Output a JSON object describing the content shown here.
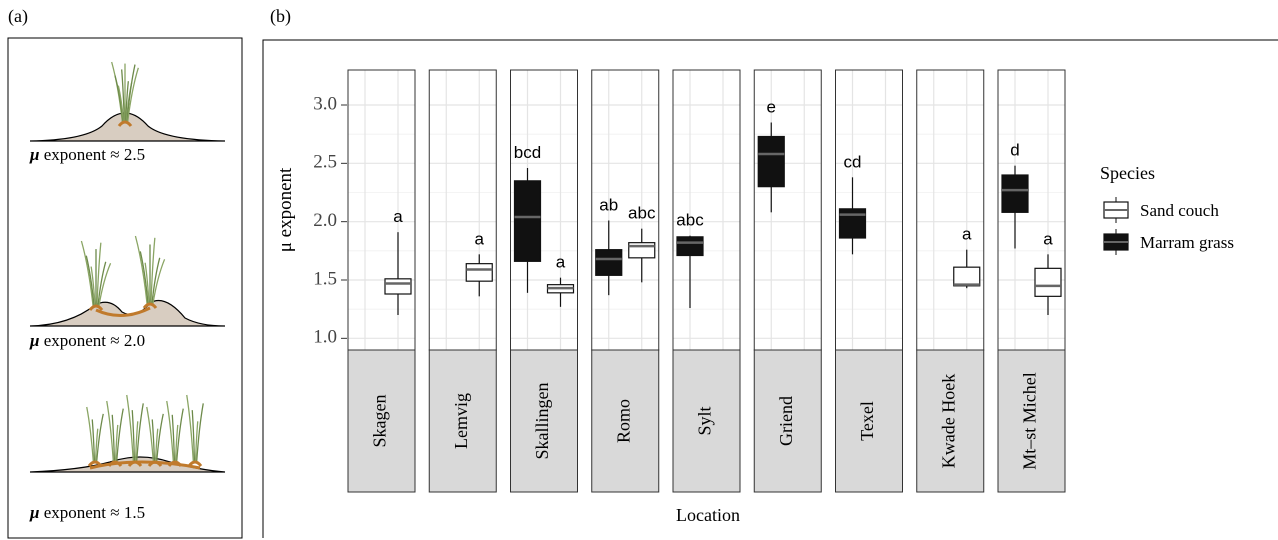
{
  "panel_a": {
    "label": "(a)",
    "items": [
      {
        "symbol": "μ",
        "text": "exponent ≈ 2.5"
      },
      {
        "symbol": "μ",
        "text": "exponent ≈ 2.0"
      },
      {
        "symbol": "μ",
        "text": "exponent ≈ 1.5"
      }
    ]
  },
  "chart_data": {
    "type": "boxplot",
    "panel_label": "(b)",
    "y_label": "μ exponent",
    "x_label": "Location",
    "categories": [
      "Skagen",
      "Lemvig",
      "Skallingen",
      "Romo",
      "Sylt",
      "Griend",
      "Texel",
      "Kwade Hoek",
      "Mt–st Michel"
    ],
    "ylim": [
      0.9,
      3.3
    ],
    "yticks": [
      {
        "value": 1,
        "label": "1.0"
      },
      1.5,
      {
        "value": 2,
        "label": "2.0"
      },
      2.5,
      {
        "value": 3,
        "label": "3.0"
      }
    ],
    "grid": true,
    "legend_title": "Species",
    "legend_position": "right",
    "series": [
      {
        "name": "Sand couch",
        "color": "#ffffff",
        "boxes": [
          {
            "low": 1.2,
            "q1": 1.38,
            "median": 1.47,
            "q3": 1.51,
            "high": 1.91,
            "label": "a"
          },
          {
            "low": 1.36,
            "q1": 1.49,
            "median": 1.59,
            "q3": 1.64,
            "high": 1.72,
            "label": "a"
          },
          {
            "low": 1.27,
            "q1": 1.39,
            "median": 1.43,
            "q3": 1.46,
            "high": 1.52,
            "label": "a"
          },
          {
            "low": 1.48,
            "q1": 1.69,
            "median": 1.79,
            "q3": 1.82,
            "high": 1.94,
            "label": "abc"
          },
          null,
          null,
          null,
          {
            "low": 1.43,
            "q1": 1.45,
            "median": 1.46,
            "q3": 1.61,
            "high": 1.76,
            "label": "a"
          },
          {
            "low": 1.2,
            "q1": 1.36,
            "median": 1.45,
            "q3": 1.6,
            "high": 1.72,
            "label": "a"
          }
        ]
      },
      {
        "name": "Marram grass",
        "color": "#111111",
        "boxes": [
          null,
          null,
          {
            "low": 1.39,
            "q1": 1.66,
            "median": 2.04,
            "q3": 2.35,
            "high": 2.46,
            "label": "bcd"
          },
          {
            "low": 1.37,
            "q1": 1.54,
            "median": 1.68,
            "q3": 1.76,
            "high": 2.01,
            "label": "ab"
          },
          {
            "low": 1.26,
            "q1": 1.71,
            "median": 1.82,
            "q3": 1.87,
            "high": 1.88,
            "label": "abc"
          },
          {
            "low": 2.08,
            "q1": 2.3,
            "median": 2.58,
            "q3": 2.73,
            "high": 2.85,
            "label": "e"
          },
          {
            "low": 1.72,
            "q1": 1.86,
            "median": 2.06,
            "q3": 2.11,
            "high": 2.38,
            "label": "cd"
          },
          null,
          {
            "low": 1.77,
            "q1": 2.08,
            "median": 2.27,
            "q3": 2.4,
            "high": 2.48,
            "label": "d"
          }
        ]
      }
    ]
  }
}
